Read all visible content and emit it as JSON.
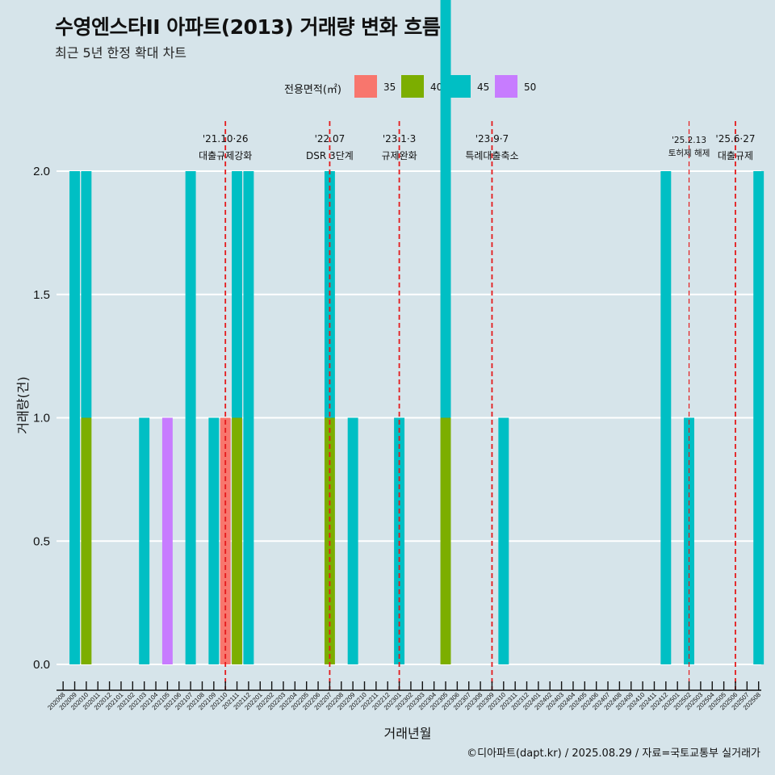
{
  "header": {
    "title": "수영엔스타II 아파트(2013) 거래량 변화 흐름",
    "subtitle": "최근 5년 한정 확대 차트"
  },
  "legend": {
    "title": "전용면적(㎡)",
    "items": [
      {
        "label": "35",
        "color": "#F8766D"
      },
      {
        "label": "40",
        "color": "#7CAE00"
      },
      {
        "label": "45",
        "color": "#00BFC4"
      },
      {
        "label": "50",
        "color": "#C77CFF"
      }
    ]
  },
  "footer": {
    "credit": "©디아파트(dapt.kr) / 2025.08.29 / 자료=국토교통부 실거래가"
  },
  "chart_data": {
    "type": "bar",
    "xlabel": "거래년월",
    "ylabel": "거래량(건)",
    "ylim": [
      0,
      2
    ],
    "yticks": [
      "0.0",
      "0.5",
      "1.0",
      "1.5",
      "2.0"
    ],
    "grid": true,
    "legend_position": "top",
    "categories": [
      "202008",
      "202009",
      "202010",
      "202011",
      "202012",
      "202101",
      "202102",
      "202103",
      "202104",
      "202105",
      "202106",
      "202107",
      "202108",
      "202109",
      "202110",
      "202111",
      "202112",
      "202201",
      "202202",
      "202203",
      "202204",
      "202205",
      "202206",
      "202207",
      "202208",
      "202209",
      "202210",
      "202211",
      "202212",
      "202301",
      "202302",
      "202303",
      "202304",
      "202305",
      "202306",
      "202307",
      "202308",
      "202309",
      "202310",
      "202311",
      "202312",
      "202401",
      "202402",
      "202403",
      "202404",
      "202405",
      "202406",
      "202407",
      "202408",
      "202409",
      "202410",
      "202411",
      "202412",
      "202501",
      "202502",
      "202503",
      "202504",
      "202505",
      "202506",
      "202507",
      "202508"
    ],
    "series": [
      {
        "name": "35",
        "color": "#F8766D",
        "bars": [
          {
            "month": "202110",
            "value": 1
          }
        ]
      },
      {
        "name": "40",
        "color": "#7CAE00",
        "bars": [
          {
            "month": "202010",
            "value": 1
          },
          {
            "month": "202111",
            "value": 1
          },
          {
            "month": "202207",
            "value": 1
          },
          {
            "month": "202305",
            "value": 1
          }
        ]
      },
      {
        "name": "45",
        "color": "#00BFC4",
        "bars": [
          {
            "month": "202009",
            "value": 2
          },
          {
            "month": "202010",
            "value": 1
          },
          {
            "month": "202103",
            "value": 1
          },
          {
            "month": "202107",
            "value": 2
          },
          {
            "month": "202109",
            "value": 1
          },
          {
            "month": "202111",
            "value": 1
          },
          {
            "month": "202112",
            "value": 2
          },
          {
            "month": "202207",
            "value": 1
          },
          {
            "month": "202209",
            "value": 1
          },
          {
            "month": "202301",
            "value": 1
          },
          {
            "month": "202305",
            "value": 2
          },
          {
            "month": "202310",
            "value": 1
          },
          {
            "month": "202412",
            "value": 2
          },
          {
            "month": "202502",
            "value": 1
          },
          {
            "month": "202508",
            "value": 2
          }
        ]
      },
      {
        "name": "50",
        "color": "#C77CFF",
        "bars": [
          {
            "month": "202105",
            "value": 1
          }
        ]
      }
    ],
    "events": [
      {
        "month": "202110",
        "date": "'21.10·26",
        "label": "대출규제강화",
        "style": "major"
      },
      {
        "month": "202207",
        "date": "'22.07",
        "label": "DSR 3단계",
        "style": "major"
      },
      {
        "month": "202301",
        "date": "'23.1·3",
        "label": "규제완화",
        "style": "major"
      },
      {
        "month": "202309",
        "date": "'23.9·7",
        "label": "특례대출축소",
        "style": "major"
      },
      {
        "month": "202502",
        "date": "'25.2.13",
        "label": "토허제 해제",
        "style": "minor"
      },
      {
        "month": "202506",
        "date": "'25.6·27",
        "label": "대출규제",
        "style": "major"
      }
    ],
    "event_line_color": "#E41A1C"
  }
}
